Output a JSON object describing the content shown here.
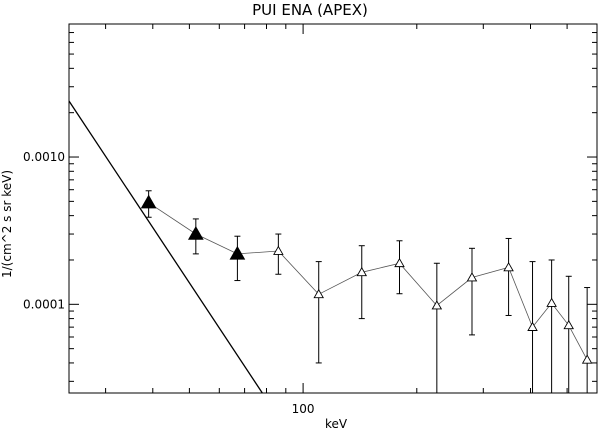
{
  "chart_data": {
    "type": "scatter",
    "title": "PUI ENA (APEX)",
    "xlabel": "keV",
    "ylabel": "1/(cm^2 s sr keV)",
    "x_scale": "log",
    "y_scale": "log",
    "xlim": [
      24,
      600
    ],
    "ylim": [
      2.5e-05,
      0.008
    ],
    "x_ticks": [
      {
        "value": 100,
        "label": "100"
      }
    ],
    "y_ticks": [
      {
        "value": 0.001,
        "label": "0.0010"
      },
      {
        "value": 0.0001,
        "label": "0.0001"
      }
    ],
    "grid": false,
    "series": [
      {
        "marker": "filled-triangle",
        "points": [
          {
            "x": 39,
            "y": 0.00049,
            "lo": 0.00039,
            "hi": 0.00059
          },
          {
            "x": 52,
            "y": 0.0003,
            "lo": 0.00022,
            "hi": 0.00038
          },
          {
            "x": 67,
            "y": 0.00022,
            "lo": 0.000145,
            "hi": 0.00029
          }
        ]
      },
      {
        "marker": "open-triangle",
        "points": [
          {
            "x": 86,
            "y": 0.00023,
            "lo": 0.00016,
            "hi": 0.0003
          },
          {
            "x": 110,
            "y": 0.000117,
            "lo": 4e-05,
            "hi": 0.000195
          },
          {
            "x": 143,
            "y": 0.000165,
            "lo": 8e-05,
            "hi": 0.00025
          },
          {
            "x": 180,
            "y": 0.00019,
            "lo": 0.000118,
            "hi": 0.00027
          },
          {
            "x": 226,
            "y": 9.8e-05,
            "lo": 2.5e-05,
            "hi": 0.00019
          },
          {
            "x": 280,
            "y": 0.000152,
            "lo": 6.2e-05,
            "hi": 0.00024
          },
          {
            "x": 350,
            "y": 0.000178,
            "lo": 8.4e-05,
            "hi": 0.00028
          },
          {
            "x": 405,
            "y": 7e-05,
            "lo": 2.5e-05,
            "hi": 0.000195
          },
          {
            "x": 455,
            "y": 0.000102,
            "lo": 2.5e-05,
            "hi": 0.0002
          },
          {
            "x": 505,
            "y": 7.2e-05,
            "lo": 2.5e-05,
            "hi": 0.000155
          },
          {
            "x": 565,
            "y": 4.2e-05,
            "lo": 2.5e-05,
            "hi": 0.00013
          }
        ]
      }
    ],
    "fit_line": {
      "x": [
        24,
        78
      ],
      "y": [
        0.0024,
        2.5e-05
      ]
    }
  }
}
